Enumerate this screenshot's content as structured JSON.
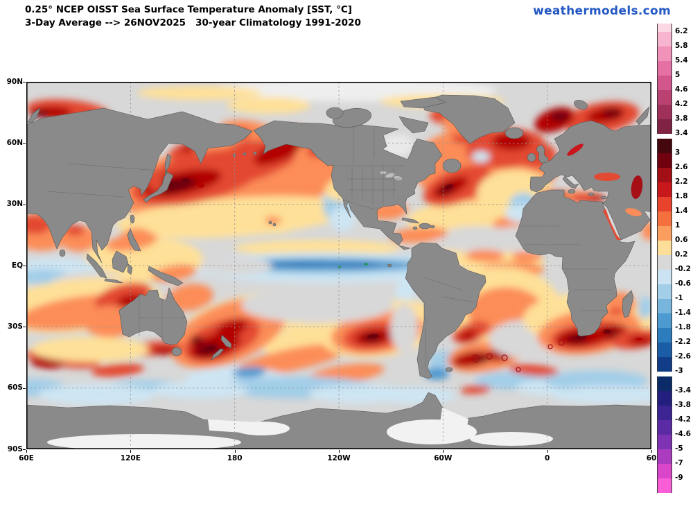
{
  "header": {
    "title_line1": "0.25° NCEP OISST Sea Surface Temperature Anomaly [SST, °C]",
    "title_line2": "3-Day Average --> 26NOV2025   30-year Climatology 1991-2020",
    "brand": "weathermodels.com",
    "brand_color": "#2459c4"
  },
  "axes": {
    "lat_ticks": [
      {
        "label": "90N",
        "lat": 90
      },
      {
        "label": "60N",
        "lat": 60
      },
      {
        "label": "30N",
        "lat": 30
      },
      {
        "label": "EQ",
        "lat": 0
      },
      {
        "label": "30S",
        "lat": -30
      },
      {
        "label": "60S",
        "lat": -60
      },
      {
        "label": "90S",
        "lat": -90
      }
    ],
    "lon_ticks": [
      {
        "label": "60E",
        "lon": 60
      },
      {
        "label": "120E",
        "lon": 120
      },
      {
        "label": "180",
        "lon": 180
      },
      {
        "label": "120W",
        "lon": 240
      },
      {
        "label": "60W",
        "lon": 300
      },
      {
        "label": "0",
        "lon": 360
      },
      {
        "label": "60",
        "lon": 420
      }
    ],
    "grid_lats": [
      60,
      30,
      0,
      -30,
      -60
    ],
    "grid_lons": [
      120,
      180,
      240,
      300,
      360
    ]
  },
  "colorbar": {
    "blocks": [
      {
        "name": "extreme-warm",
        "segments": [
          {
            "color": "#fcd7e4",
            "label": "6.2"
          },
          {
            "color": "#f8b5cf",
            "label": "5.8"
          },
          {
            "color": "#f192ba",
            "label": "5.4"
          },
          {
            "color": "#e470a4",
            "label": "5"
          },
          {
            "color": "#d2558c",
            "label": "4.6"
          },
          {
            "color": "#ba4273",
            "label": "4.2"
          },
          {
            "color": "#9e305a",
            "label": "3.8"
          },
          {
            "color": "#802243",
            "label": "3.4"
          }
        ]
      },
      {
        "name": "main",
        "segments": [
          {
            "color": "#45070e",
            "label": "3"
          },
          {
            "color": "#71010e",
            "label": "2.6"
          },
          {
            "color": "#a21015",
            "label": "2.2"
          },
          {
            "color": "#c9181c",
            "label": "1.8"
          },
          {
            "color": "#e8432c",
            "label": "1.4"
          },
          {
            "color": "#f4703f",
            "label": "1"
          },
          {
            "color": "#fa9d5e",
            "label": "0.6"
          },
          {
            "color": "#fedf9a",
            "label": "0.2"
          },
          {
            "color": "#d8d8d8",
            "label": "-0.2"
          },
          {
            "color": "#cbe3f2",
            "label": "-0.6"
          },
          {
            "color": "#a3cee8",
            "label": "-1"
          },
          {
            "color": "#77b5dd",
            "label": "-1.4"
          },
          {
            "color": "#4d9ad0",
            "label": "-1.8"
          },
          {
            "color": "#2c7dbd",
            "label": "-2.2"
          },
          {
            "color": "#1a5ca6",
            "label": "-2.6"
          },
          {
            "color": "#113c88",
            "label": "-3"
          }
        ]
      },
      {
        "name": "extreme-cold",
        "segments": [
          {
            "color": "#0b2a68",
            "label": "-3.4"
          },
          {
            "color": "#231f7e",
            "label": "-3.8"
          },
          {
            "color": "#3c2493",
            "label": "-4.2"
          },
          {
            "color": "#5a2ba5",
            "label": "-4.6"
          },
          {
            "color": "#7e33b5",
            "label": "-5"
          },
          {
            "color": "#ab3cbf",
            "label": "-7"
          },
          {
            "color": "#d946c9",
            "label": "-9"
          },
          {
            "color": "#f95ed7",
            "label": null
          }
        ]
      }
    ]
  },
  "chart_data": {
    "type": "heatmap",
    "title": "0.25° NCEP OISST Sea Surface Temperature Anomaly [SST, °C]",
    "subtitle": "3-Day Average --> 26NOV2025  30-year Climatology 1991-2020",
    "units": "°C",
    "projection": "global equirectangular, 60E eastward to 60E, 90S-90N",
    "xlabel_ticks": [
      "60E",
      "120E",
      "180",
      "120W",
      "60W",
      "0",
      "60"
    ],
    "ylabel_ticks": [
      "90N",
      "60N",
      "30N",
      "EQ",
      "30S",
      "60S",
      "90S"
    ],
    "legend_position": "right",
    "colorbar_ticks": [
      6.2,
      5.8,
      5.4,
      5,
      4.6,
      4.2,
      3.8,
      3.4,
      3,
      2.6,
      2.2,
      1.8,
      1.4,
      1,
      0.6,
      0.2,
      -0.2,
      -0.6,
      -1,
      -1.4,
      -1.8,
      -2.2,
      -2.6,
      -3,
      -3.4,
      -3.8,
      -4.2,
      -4.6,
      -5,
      -7,
      -9
    ],
    "notable_anomalies": [
      {
        "region": "Northwest Pacific / Kuroshio extension",
        "anomaly_c": "+2 to +3"
      },
      {
        "region": "Gulf of Alaska / Bering Sea",
        "anomaly_c": "+1 to +2.5"
      },
      {
        "region": "Equatorial central-eastern Pacific (La Nina cold tongue)",
        "anomaly_c": "-1 to -2"
      },
      {
        "region": "Tasman Sea / around New Zealand",
        "anomaly_c": "+2 to +3"
      },
      {
        "region": "Southeast Pacific near 40S 100W",
        "anomaly_c": "+2 to +3"
      },
      {
        "region": "Gulf Stream / Northwest Atlantic",
        "anomaly_c": "+2 to +3"
      },
      {
        "region": "Subpolar North Atlantic, Norwegian and Barents Seas",
        "anomaly_c": "+1.5 to +3"
      },
      {
        "region": "Agulhas region south of Africa",
        "anomaly_c": "+2.5 to +3"
      },
      {
        "region": "Argentine Basin eddies (Southwest Atlantic)",
        "anomaly_c": "+2 to +3"
      },
      {
        "region": "Northwest of Australia / eastern Indian Ocean",
        "anomaly_c": "+1.5 to +2.5"
      },
      {
        "region": "Subtropical gyre bands",
        "anomaly_c": "-0.2 to +0.2"
      },
      {
        "region": "California / Baja coast",
        "anomaly_c": "-0.6 to -1"
      },
      {
        "region": "West of Iberia",
        "anomaly_c": "-0.6 to -1"
      },
      {
        "region": "Mediterranean Sea",
        "anomaly_c": "+1 to +2.5"
      }
    ]
  }
}
